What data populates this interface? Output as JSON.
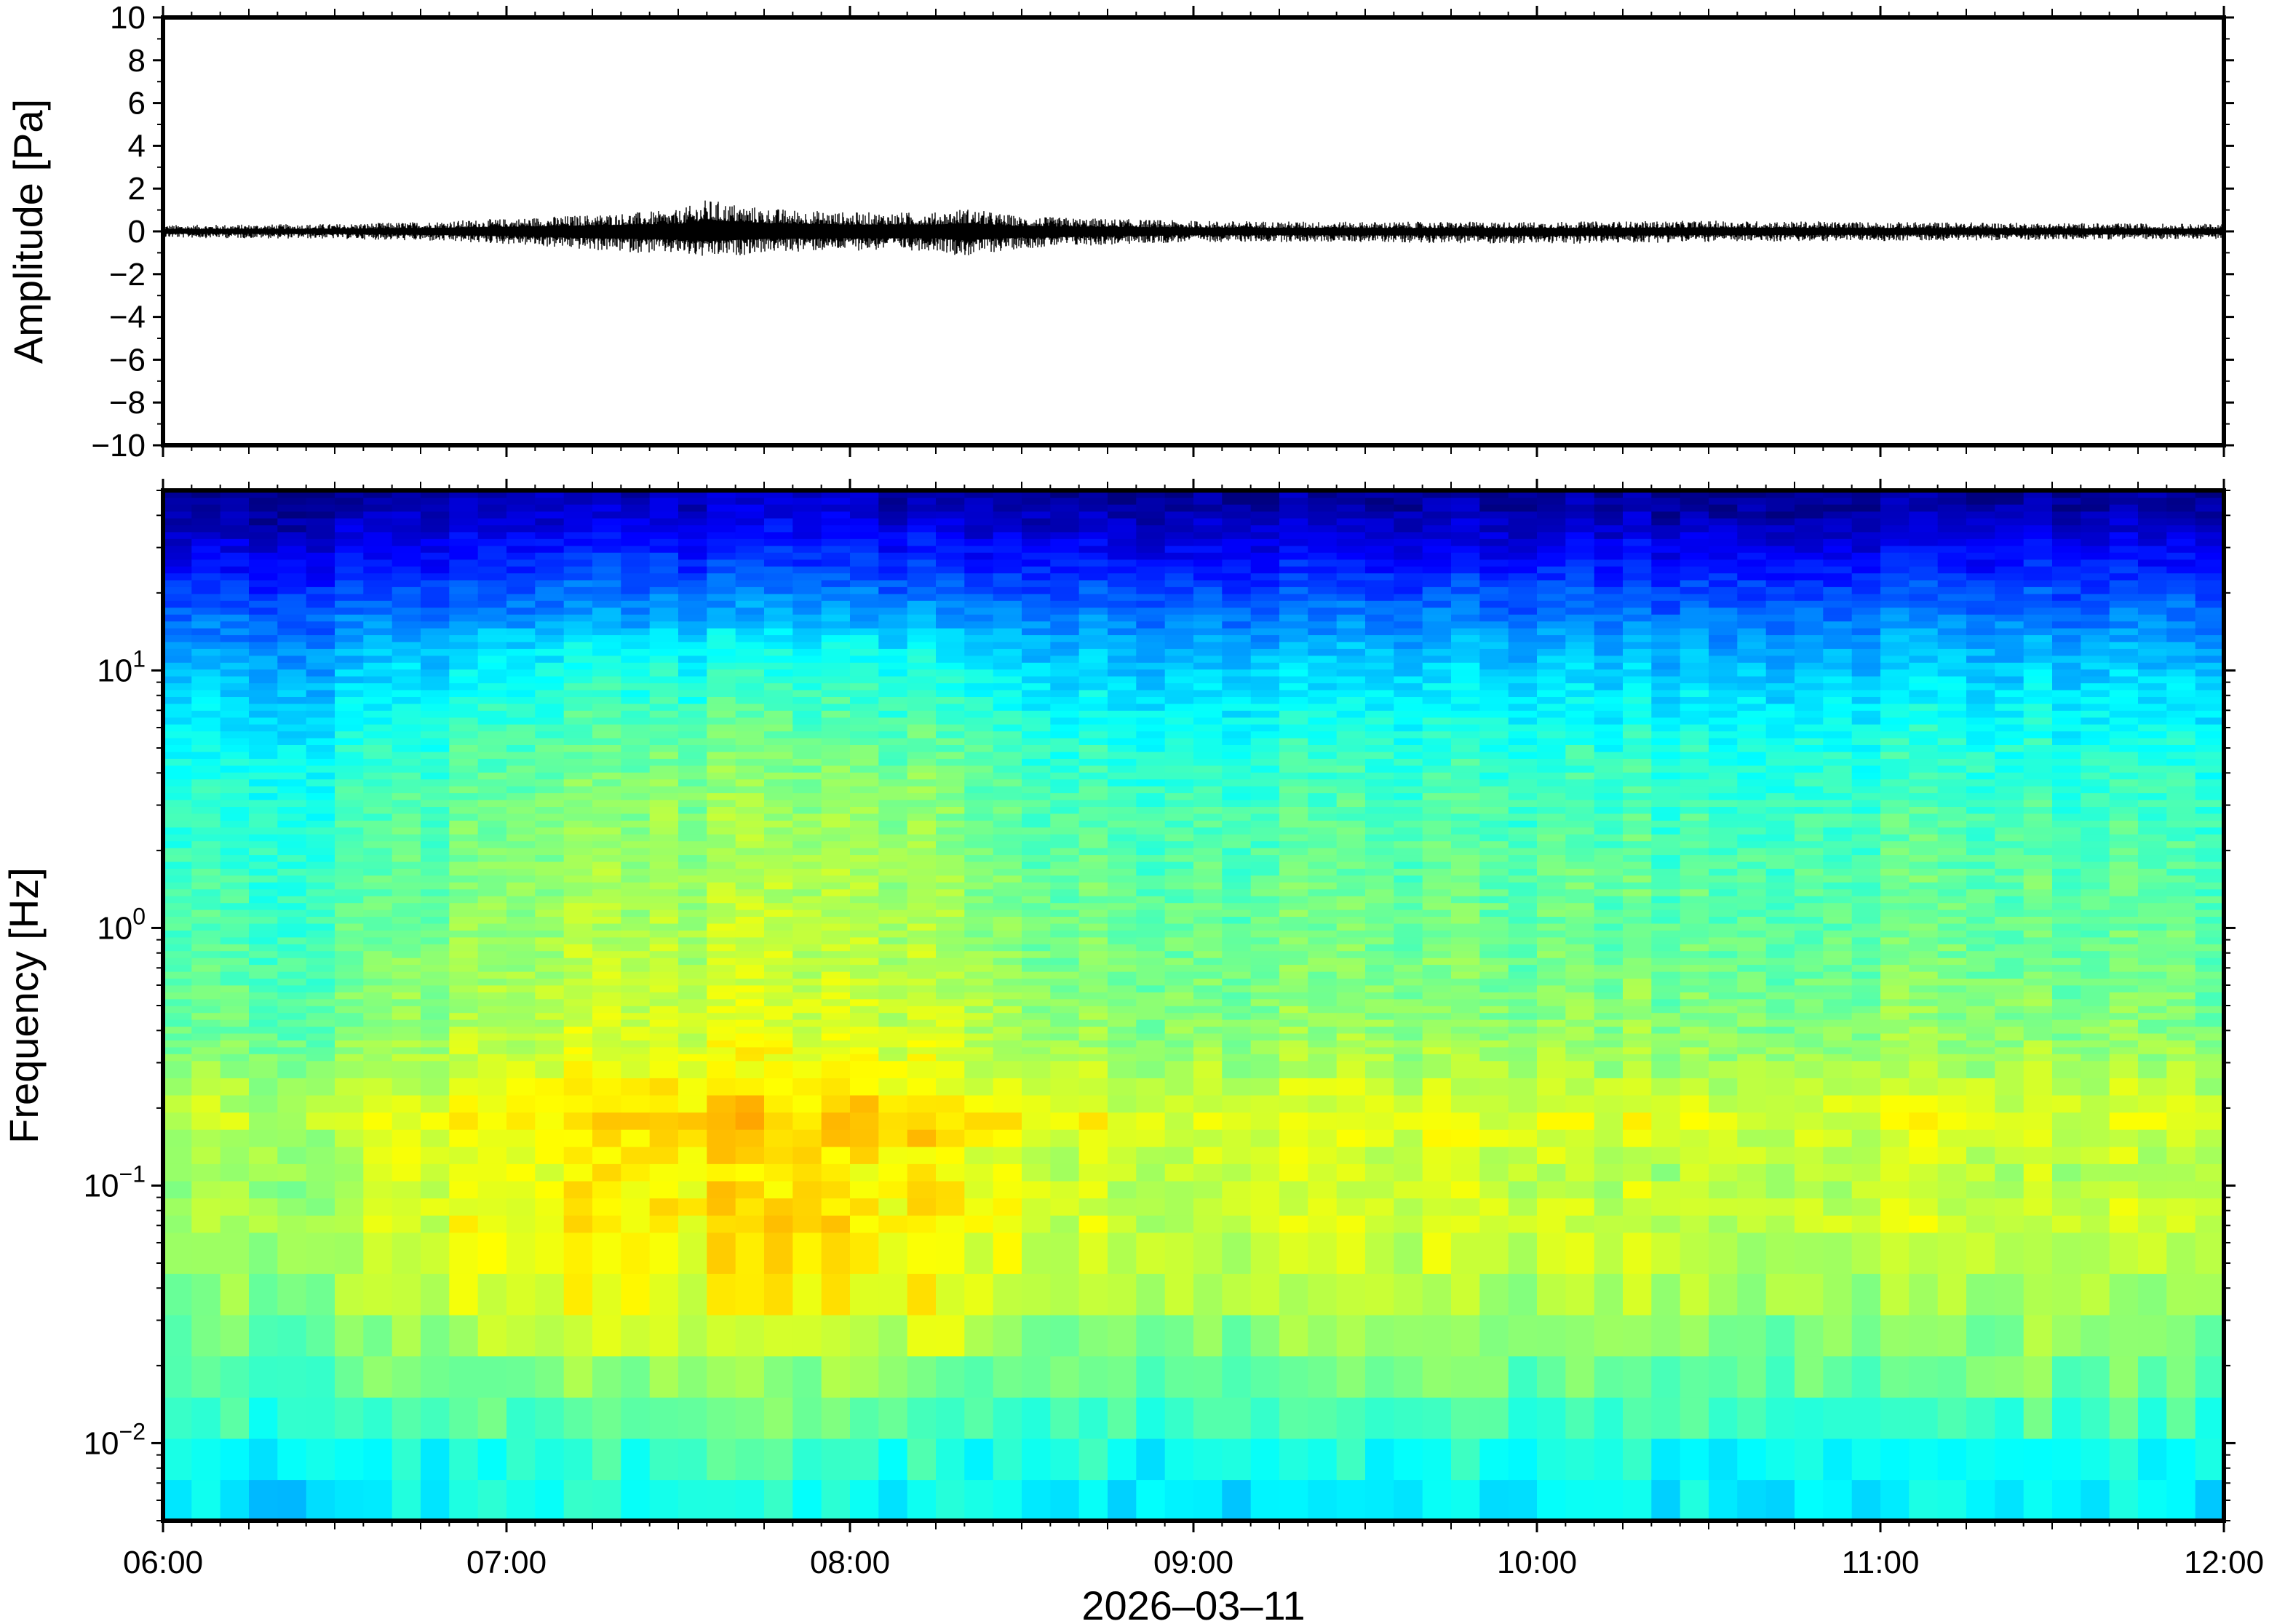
{
  "chart_data": [
    {
      "type": "line",
      "panel": "waveform",
      "ylabel": "Amplitude [Pa]",
      "xlabel": "",
      "x_unit": "time",
      "xlim": [
        "06:00",
        "12:00"
      ],
      "ylim": [
        -10,
        10
      ],
      "y_ticks": [
        -10,
        -8,
        -6,
        -4,
        -2,
        0,
        2,
        4,
        6,
        8,
        10
      ],
      "y_tick_labels": [
        "−10",
        "−8",
        "−6",
        "−4",
        "−2",
        "0",
        "2",
        "4",
        "6",
        "8",
        "10"
      ],
      "grid": false,
      "color": "#000000",
      "envelope": {
        "description_source": "peak amplitude of trace read from plot",
        "x": [
          "06:00",
          "06:30",
          "06:45",
          "07:00",
          "07:15",
          "07:30",
          "07:35",
          "07:45",
          "08:00",
          "08:15",
          "08:20",
          "08:30",
          "09:00",
          "09:30",
          "10:00",
          "10:30",
          "11:00",
          "11:30",
          "12:00"
        ],
        "max": [
          0.3,
          0.35,
          0.45,
          0.6,
          0.8,
          1.0,
          1.5,
          1.1,
          0.9,
          0.9,
          1.1,
          0.7,
          0.5,
          0.45,
          0.45,
          0.5,
          0.45,
          0.4,
          0.35
        ],
        "min": [
          -0.3,
          -0.35,
          -0.45,
          -0.6,
          -0.9,
          -1.1,
          -1.3,
          -1.0,
          -0.9,
          -0.9,
          -1.2,
          -0.8,
          -0.5,
          -0.5,
          -0.6,
          -0.5,
          -0.45,
          -0.4,
          -0.35
        ]
      }
    },
    {
      "type": "heatmap",
      "panel": "spectrogram",
      "ylabel": "Frequency [Hz]",
      "xlabel": "2026–03–11",
      "x_tick_labels": [
        "06:00",
        "07:00",
        "08:00",
        "09:00",
        "10:00",
        "11:00",
        "12:00"
      ],
      "xlim": [
        "06:00",
        "12:00"
      ],
      "y_scale": "log",
      "ylim": [
        0.005,
        50
      ],
      "y_ticks": [
        {
          "value": 0.01,
          "base": "10",
          "exp": "−2"
        },
        {
          "value": 0.1,
          "base": "10",
          "exp": "−1"
        },
        {
          "value": 1,
          "base": "10",
          "exp": "0"
        },
        {
          "value": 10,
          "base": "10",
          "exp": "1"
        }
      ],
      "colormap": "jet",
      "colormap_stops": [
        "#00007f",
        "#0000ff",
        "#0080ff",
        "#00ffff",
        "#80ff80",
        "#ffff00",
        "#ff8000",
        "#ff0000"
      ],
      "time_windows_per_hour": 12,
      "frequency_bands": [
        0.0055,
        0.008,
        0.012,
        0.018,
        0.027,
        0.04,
        0.055,
        0.08,
        0.12,
        0.18,
        0.27,
        0.4,
        0.6,
        1,
        1.8,
        3,
        5,
        8,
        12,
        18,
        25,
        35,
        45
      ],
      "band_profile": [
        0.42,
        0.44,
        0.5,
        0.56,
        0.6,
        0.64,
        0.66,
        0.67,
        0.65,
        0.7,
        0.64,
        0.6,
        0.58,
        0.56,
        0.54,
        0.52,
        0.48,
        0.42,
        0.36,
        0.26,
        0.18,
        0.1,
        0.04
      ],
      "time_activity": {
        "x": [
          "06:00",
          "06:30",
          "06:45",
          "07:00",
          "07:30",
          "08:00",
          "08:20",
          "08:30",
          "09:00",
          "09:30",
          "10:00",
          "10:30",
          "11:00",
          "11:30",
          "12:00"
        ],
        "level": [
          -0.04,
          -0.05,
          0.0,
          0.04,
          0.07,
          0.06,
          0.07,
          0.0,
          -0.01,
          0.0,
          -0.01,
          -0.02,
          -0.01,
          -0.02,
          -0.03
        ]
      }
    }
  ]
}
